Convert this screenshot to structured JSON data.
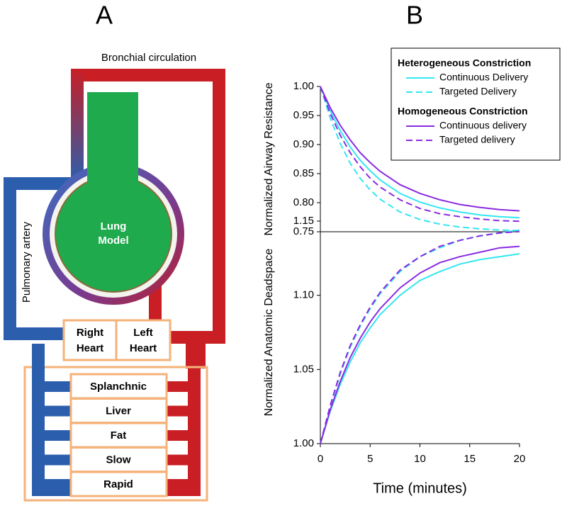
{
  "panels": {
    "a": "A",
    "b": "B"
  },
  "diagram": {
    "bronchial": "Bronchial circulation",
    "pulmonary": "Pulmonary artery",
    "lung": [
      "Lung",
      "Model"
    ],
    "right_heart": [
      "Right",
      "Heart"
    ],
    "left_heart": [
      "Left",
      "Heart"
    ],
    "organs": [
      "Splanchnic",
      "Liver",
      "Fat",
      "Slow",
      "Rapid"
    ]
  },
  "chart_data": [
    {
      "type": "line",
      "ylabel": "Normalized Airway Resistance",
      "x": [
        0,
        1,
        2,
        3,
        4,
        5,
        6,
        8,
        10,
        12,
        14,
        16,
        18,
        20
      ],
      "xlim": [
        0,
        20
      ],
      "ylim": [
        0.75,
        1.0
      ],
      "yticks": [
        {
          "value": 1.0,
          "label": "1.00"
        },
        {
          "value": 0.95,
          "label": "0.95"
        },
        {
          "value": 0.9,
          "label": "0.90"
        },
        {
          "value": 0.85,
          "label": "0.85"
        },
        {
          "value": 0.8,
          "label": "0.80"
        },
        {
          "value": 0.75,
          "label": "0.75"
        }
      ],
      "legend_groups": [
        "Heterogeneous Constriction",
        "Homogeneous Constriction"
      ],
      "series": [
        {
          "name": "Continuous Delivery",
          "color": "#33e6f0",
          "dash": false,
          "group": 0,
          "values": [
            1.0,
            0.958,
            0.924,
            0.896,
            0.873,
            0.855,
            0.839,
            0.816,
            0.801,
            0.791,
            0.784,
            0.779,
            0.776,
            0.774
          ]
        },
        {
          "name": "Targeted Delivery",
          "color": "#33e6f0",
          "dash": true,
          "group": 0,
          "values": [
            1.0,
            0.945,
            0.902,
            0.868,
            0.842,
            0.822,
            0.806,
            0.784,
            0.771,
            0.763,
            0.758,
            0.755,
            0.753,
            0.752
          ]
        },
        {
          "name": "Continuous delivery",
          "color": "#8a2be2",
          "dash": false,
          "group": 1,
          "values": [
            1.0,
            0.963,
            0.933,
            0.908,
            0.886,
            0.869,
            0.854,
            0.831,
            0.816,
            0.805,
            0.797,
            0.792,
            0.788,
            0.786
          ]
        },
        {
          "name": "Targeted delivery",
          "color": "#8a2be2",
          "dash": true,
          "group": 1,
          "values": [
            1.0,
            0.953,
            0.916,
            0.886,
            0.862,
            0.842,
            0.827,
            0.805,
            0.79,
            0.781,
            0.776,
            0.772,
            0.769,
            0.768
          ]
        }
      ]
    },
    {
      "type": "line",
      "ylabel": "Normalized Anatomic Deadspace",
      "xlabel": "Time (minutes)",
      "x": [
        0,
        1,
        2,
        3,
        4,
        5,
        6,
        8,
        10,
        12,
        14,
        16,
        18,
        20
      ],
      "xlim": [
        0,
        20
      ],
      "xticks": [
        0,
        5,
        10,
        15,
        20
      ],
      "ylim": [
        1.0,
        1.15
      ],
      "yticks": [
        {
          "value": 1.15,
          "label": "1.15"
        },
        {
          "value": 1.1,
          "label": "1.10"
        },
        {
          "value": 1.05,
          "label": "1.05"
        },
        {
          "value": 1.0,
          "label": "1.00"
        }
      ],
      "series": [
        {
          "name": "Continuous Delivery",
          "color": "#33e6f0",
          "dash": false,
          "values": [
            1.0,
            1.022,
            1.04,
            1.055,
            1.068,
            1.078,
            1.087,
            1.1,
            1.11,
            1.116,
            1.121,
            1.124,
            1.126,
            1.128
          ]
        },
        {
          "name": "Targeted Delivery",
          "color": "#33e6f0",
          "dash": true,
          "values": [
            1.0,
            1.025,
            1.047,
            1.065,
            1.079,
            1.091,
            1.101,
            1.116,
            1.126,
            1.132,
            1.137,
            1.14,
            1.142,
            1.144
          ]
        },
        {
          "name": "Continuous delivery",
          "color": "#8a2be2",
          "dash": false,
          "values": [
            1.0,
            1.023,
            1.042,
            1.058,
            1.071,
            1.082,
            1.091,
            1.105,
            1.115,
            1.122,
            1.126,
            1.129,
            1.132,
            1.133
          ]
        },
        {
          "name": "Targeted delivery",
          "color": "#8a2be2",
          "dash": true,
          "values": [
            1.0,
            1.026,
            1.048,
            1.066,
            1.08,
            1.092,
            1.102,
            1.117,
            1.126,
            1.133,
            1.137,
            1.14,
            1.142,
            1.143
          ]
        }
      ]
    }
  ]
}
